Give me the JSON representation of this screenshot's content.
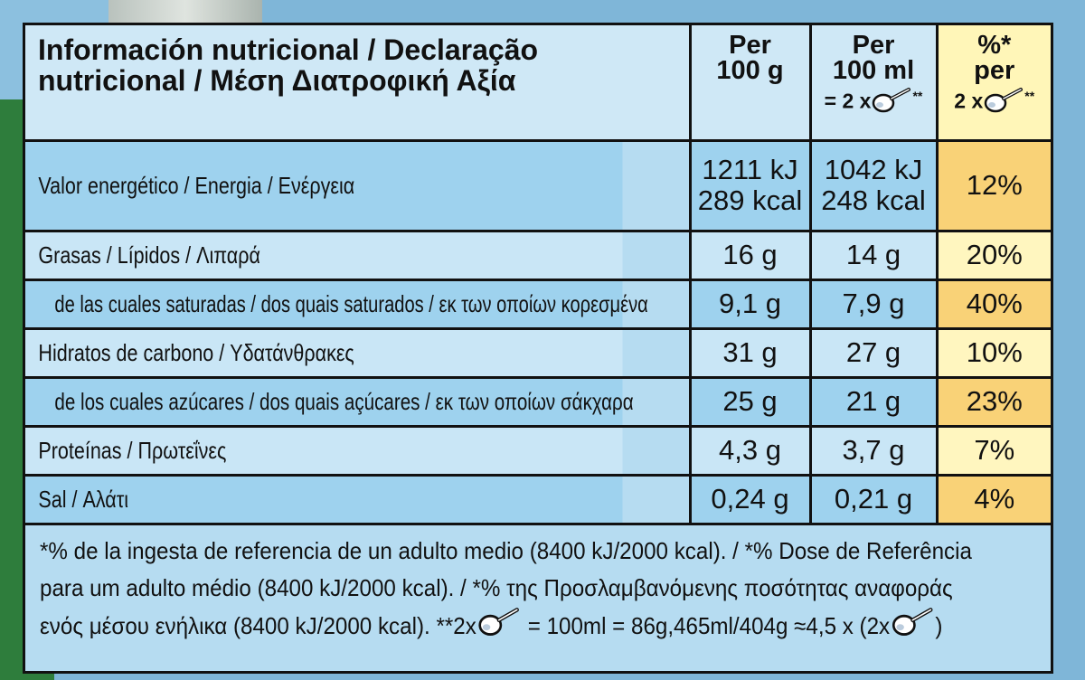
{
  "header": {
    "title_line1": "Información nutricional / Declaração",
    "title_line2": "nutricional / Μέση Διατροφική Αξία",
    "col_100g_line1": "Per",
    "col_100g_line2": "100 g",
    "col_100ml_line1": "Per",
    "col_100ml_line2": "100 ml",
    "col_100ml_line3_prefix": "= 2 x",
    "col_100ml_line3_suffix": "**",
    "col_pct_line1": "%*",
    "col_pct_line2": "per",
    "col_pct_line3_prefix": "2 x",
    "col_pct_line3_suffix": "**"
  },
  "rows": [
    {
      "label": "Valor energético / Energia / Ενέργεια",
      "per_100g_line1": "1211 kJ",
      "per_100g_line2": "289 kcal",
      "per_100ml_line1": "1042 kJ",
      "per_100ml_line2": "248 kcal",
      "pct": "12%"
    },
    {
      "label": "Grasas / Lípidos / Λιπαρά",
      "per_100g": "16 g",
      "per_100ml": "14 g",
      "pct": "20%"
    },
    {
      "label": "de las cuales saturadas / dos quais saturados / εκ των οποίων κορεσμένα",
      "per_100g": "9,1 g",
      "per_100ml": "7,9 g",
      "pct": "40%"
    },
    {
      "label": "Hidratos de carbono / Υδατάνθρακες",
      "per_100g": "31 g",
      "per_100ml": "27 g",
      "pct": "10%"
    },
    {
      "label": "de los cuales azúcares / dos quais açúcares / εκ των οποίων σάκχαρα",
      "per_100g": "25 g",
      "per_100ml": "21 g",
      "pct": "23%"
    },
    {
      "label": "Proteínas / Πρωτεΐνες",
      "per_100g": "4,3 g",
      "per_100ml": "3,7 g",
      "pct": "7%"
    },
    {
      "label": "Sal / Αλάτι",
      "per_100g": "0,24 g",
      "per_100ml": "0,21 g",
      "pct": "4%"
    }
  ],
  "footnote": {
    "line1": "*% de la ingesta de referencia de un adulto medio (8400 kJ/2000 kcal). / *% Dose de Referência",
    "line2": "para um adulto médio (8400 kJ/2000 kcal). / *% της Προσλαμβανόμενης ποσότητας αναφοράς",
    "line3_part1": "ενός μέσου ενήλικα (8400 kJ/2000 kcal).   **2x",
    "line3_part2": " = 100ml = 86g,465ml/404g ≈4,5 x (2x",
    "line3_part3": ")"
  },
  "icons": {
    "serving": "ice-cream-scoop-icon"
  },
  "colors": {
    "row_dark": "#9ed2ee",
    "row_light": "#c9e6f6",
    "pct_dark": "#f9d277",
    "pct_light": "#fff6bf",
    "green": "#2e7d3c"
  }
}
